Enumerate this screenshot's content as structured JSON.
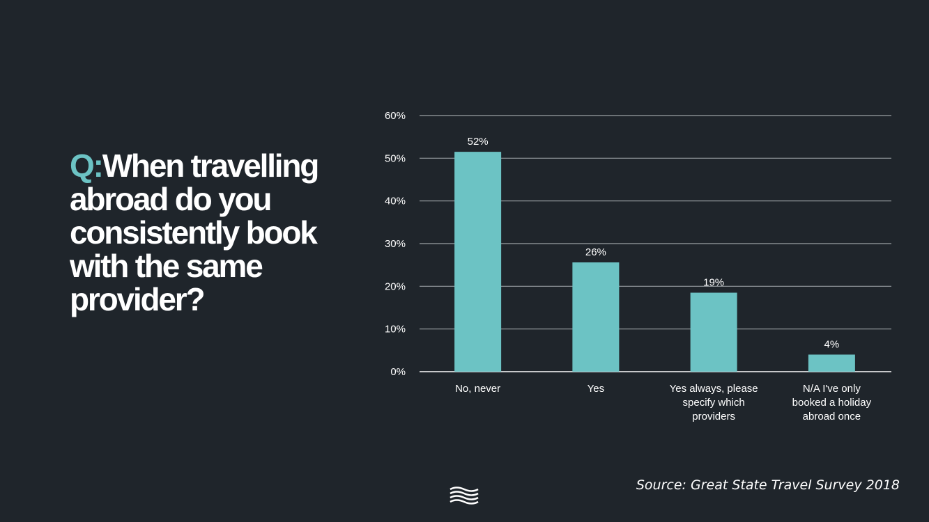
{
  "question": {
    "prefix": "Q:",
    "text": "When travelling abroad do you consistently book with the same provider?"
  },
  "source": "Source: Great State Travel Survey 2018",
  "colors": {
    "background": "#1f252b",
    "bar": "#6cc3c4",
    "accent": "#6cc3c4",
    "gridline": "#9aa0a4",
    "text": "#ffffff"
  },
  "logo": {
    "icon": "waves-logo-icon"
  },
  "chart_data": {
    "type": "bar",
    "categories": [
      "No, never",
      "Yes",
      "Yes always, please specify which providers",
      "N/A I've only booked a holiday abroad once"
    ],
    "category_lines": [
      [
        "No, never"
      ],
      [
        "Yes"
      ],
      [
        "Yes always, please",
        "specify which",
        "providers"
      ],
      [
        "N/A I've only",
        "booked a holiday",
        "abroad once"
      ]
    ],
    "values": [
      51.5,
      25.6,
      18.5,
      4.0
    ],
    "data_labels": [
      "52%",
      "26%",
      "19%",
      "4%"
    ],
    "ylim": [
      0,
      60
    ],
    "yticks": [
      0,
      10,
      20,
      30,
      40,
      50,
      60
    ],
    "ytick_labels": [
      "0%",
      "10%",
      "20%",
      "30%",
      "40%",
      "50%",
      "60%"
    ],
    "grid": true,
    "legend": "none"
  }
}
